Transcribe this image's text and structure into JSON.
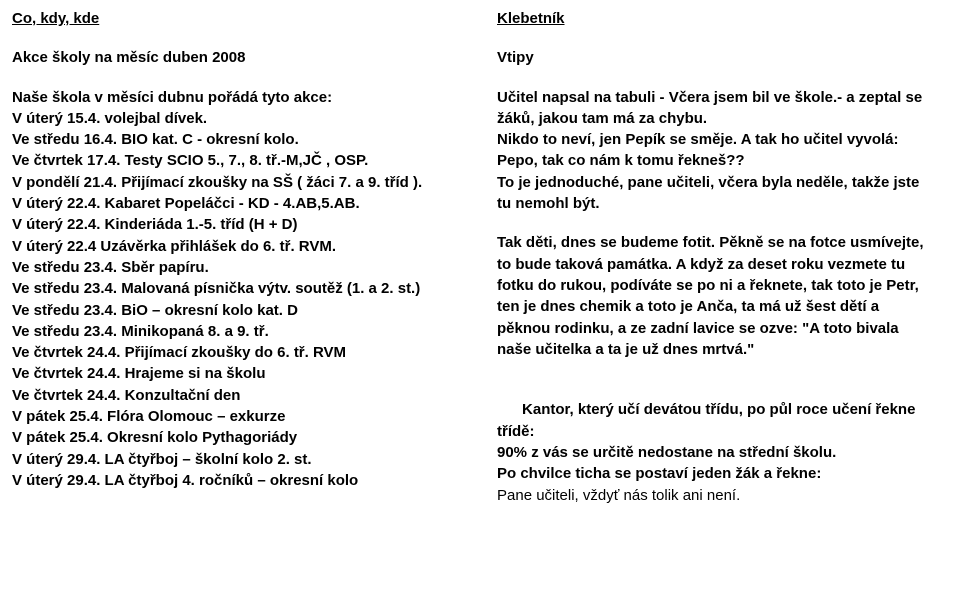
{
  "left": {
    "heading": "Co, kdy, kde",
    "subtitle": "Akce školy na měsíc duben 2008",
    "intro": "Naše škola v měsíci dubnu pořádá tyto akce:",
    "schedule": "V úterý 15.4. volejbal dívek.\nVe středu 16.4. BIO kat. C - okresní kolo.\nVe čtvrtek 17.4. Testy SCIO 5., 7., 8. tř.-M,JČ , OSP.\nV pondělí 21.4. Přijímací zkoušky na SŠ ( žáci 7. a 9. tříd ).\nV úterý 22.4. Kabaret Popeláčci - KD - 4.AB,5.AB.\nV úterý 22.4. Kinderiáda 1.-5. tříd (H + D)\nV úterý 22.4 Uzávěrka přihlášek do 6. tř. RVM.\nVe středu 23.4. Sběr papíru.\nVe středu 23.4. Malovaná písnička výtv. soutěž (1. a 2. st.)\nVe středu 23.4. BiO – okresní kolo kat. D\nVe středu 23.4. Minikopaná 8. a 9. tř.\nVe čtvrtek 24.4. Přijímací zkoušky do 6. tř. RVM\nVe čtvrtek 24.4. Hrajeme si na školu\nVe čtvrtek 24.4. Konzultační den\nV pátek 25.4. Flóra Olomouc – exkurze\nV pátek 25.4. Okresní kolo Pythagoriády\nV úterý 29.4. LA čtyřboj – školní kolo 2. st.\nV úterý 29.4. LA čtyřboj 4. ročníků – okresní kolo"
  },
  "right": {
    "heading": "Klebetník",
    "subtitle": "Vtipy",
    "joke1": "Učitel napsal na tabuli - Včera jsem bil ve škole.- a zeptal se žáků, jakou tam má za chybu.\nNikdo to neví, jen Pepík se směje. A tak ho učitel vyvolá:\nPepo, tak co nám k tomu řekneš??\nTo je jednoduché, pane učiteli, včera byla neděle, takže jste tu nemohl být.",
    "joke2": "Tak děti, dnes se budeme fotit. Pěkně se na fotce usmívejte, to bude taková památka. A když za deset roku vezmete tu fotku do rukou, podíváte se po ni a řeknete, tak toto je Petr, ten je dnes chemik a toto je Anča, ta má už šest dětí a pěknou rodinku, a ze zadní lavice se ozve: \"A toto bivala naše učitelka a ta je už dnes mrtvá.\"",
    "joke3_setup": "Kantor, který učí devátou třídu, po půl roce učení řekne třídě:\n90% z vás se určitě nedostane na střední školu.\nPo chvilce ticha se postaví jeden žák a řekne:",
    "joke3_punchline": "Pane učiteli, vždyť nás tolik ani není."
  }
}
